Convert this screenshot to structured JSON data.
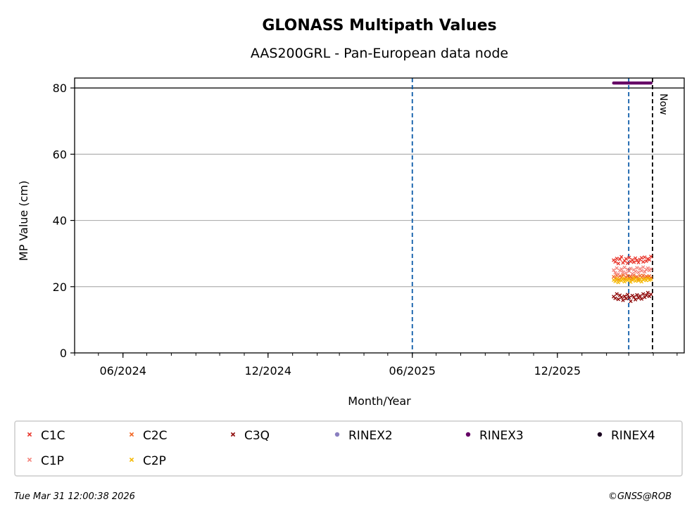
{
  "chart_data": {
    "type": "scatter",
    "title": "GLONASS Multipath Values",
    "subtitle": "AAS200GRL - Pan-European data node",
    "xlabel": "Month/Year",
    "ylabel": "MP Value (cm)",
    "x_range": [
      "2024-04-01",
      "2026-05-10"
    ],
    "ylim": [
      0,
      83
    ],
    "yticks": [
      0,
      20,
      40,
      60,
      80
    ],
    "xticks": [
      {
        "date": "2024-06-01",
        "label": "06/2024"
      },
      {
        "date": "2024-12-01",
        "label": "12/2024"
      },
      {
        "date": "2025-06-01",
        "label": "06/2025"
      },
      {
        "date": "2025-12-01",
        "label": "12/2025"
      }
    ],
    "grid": "horizontal",
    "threshold_line": 80,
    "event_lines": [
      "2025-06-01",
      "2026-03-01"
    ],
    "now_line": {
      "date": "2026-03-31",
      "label": "Now"
    },
    "series": [
      {
        "name": "C1C",
        "marker": "x",
        "color": "#e8342a",
        "date_start": "2026-02-10",
        "date_end": "2026-03-29",
        "values": [
          28,
          27.5,
          28.5,
          27,
          28.3,
          29,
          27.2,
          27.8,
          28.4,
          27.1,
          28.8,
          27.6,
          28.1,
          27.4,
          28.6,
          27.9,
          27.3,
          28.2,
          28.7,
          27.5,
          28.9,
          27.7,
          28.4,
          28.1,
          29.1
        ]
      },
      {
        "name": "C2C",
        "marker": "x",
        "color": "#f26522",
        "date_start": "2026-02-10",
        "date_end": "2026-03-29",
        "values": [
          23,
          22.5,
          23.4,
          22.1,
          23.2,
          22.8,
          23.6,
          22.3,
          22.9,
          23.3,
          22.6,
          23.1,
          22.4,
          23.5,
          22.7,
          23,
          22.2,
          23.3,
          22.8,
          23.4,
          22.5,
          23.1,
          22.9,
          23.2,
          22.7
        ]
      },
      {
        "name": "C3Q",
        "marker": "x",
        "color": "#8b0000",
        "date_start": "2026-02-10",
        "date_end": "2026-03-29",
        "values": [
          17,
          16.5,
          17.8,
          16.2,
          17.4,
          16.8,
          15.9,
          17.1,
          16.4,
          17.6,
          16.7,
          15.6,
          17.3,
          16.9,
          16.1,
          17.5,
          16.6,
          17.2,
          16.3,
          17.8,
          16.8,
          17.4,
          18.2,
          17.1,
          17.7
        ]
      },
      {
        "name": "RINEX2",
        "marker": "dot",
        "color": "#8a7fc0",
        "values": []
      },
      {
        "name": "RINEX3",
        "marker": "dot",
        "color": "#660066",
        "date_start": "2026-02-10",
        "date_end": "2026-03-29",
        "constant": 81.5,
        "count": 45
      },
      {
        "name": "RINEX4",
        "marker": "dot",
        "color": "#1a0020",
        "values": []
      },
      {
        "name": "C1P",
        "marker": "x",
        "color": "#f4827a",
        "date_start": "2026-02-10",
        "date_end": "2026-03-29",
        "values": [
          25,
          24.2,
          25.6,
          23.8,
          24.9,
          25.3,
          24.4,
          25.8,
          24.1,
          25.2,
          24.7,
          25.5,
          23.9,
          25.1,
          24.6,
          25.7,
          24.3,
          25.4,
          24.8,
          25.9,
          24.5,
          25.2,
          25.6,
          24.9,
          25.3
        ]
      },
      {
        "name": "C2P",
        "marker": "x",
        "color": "#f5b800",
        "date_start": "2026-02-10",
        "date_end": "2026-03-29",
        "values": [
          22,
          21.6,
          22.4,
          21.3,
          22.1,
          21.8,
          22.5,
          21.5,
          22.2,
          21.9,
          22.3,
          21.4,
          22,
          22.6,
          21.7,
          22.2,
          21.8,
          22.4,
          21.5,
          22.1,
          22.3,
          21.9,
          22.5,
          22,
          22.2
        ]
      }
    ]
  },
  "legend": [
    {
      "label": "C1C",
      "color": "#e8342a",
      "marker": "x"
    },
    {
      "label": "C2C",
      "color": "#f26522",
      "marker": "x"
    },
    {
      "label": "C3Q",
      "color": "#8b0000",
      "marker": "x"
    },
    {
      "label": "RINEX2",
      "color": "#8a7fc0",
      "marker": "dot"
    },
    {
      "label": "RINEX3",
      "color": "#660066",
      "marker": "dot"
    },
    {
      "label": "RINEX4",
      "color": "#1a0020",
      "marker": "dot"
    },
    {
      "label": "C1P",
      "color": "#f4827a",
      "marker": "x"
    },
    {
      "label": "C2P",
      "color": "#f5b800",
      "marker": "x"
    }
  ],
  "footer": {
    "timestamp": "Tue Mar 31 12:00:38 2026",
    "copyright": "©GNSS@ROB"
  },
  "colors": {
    "event_line": "#0a5aa8",
    "grid": "#b0b0b0"
  }
}
